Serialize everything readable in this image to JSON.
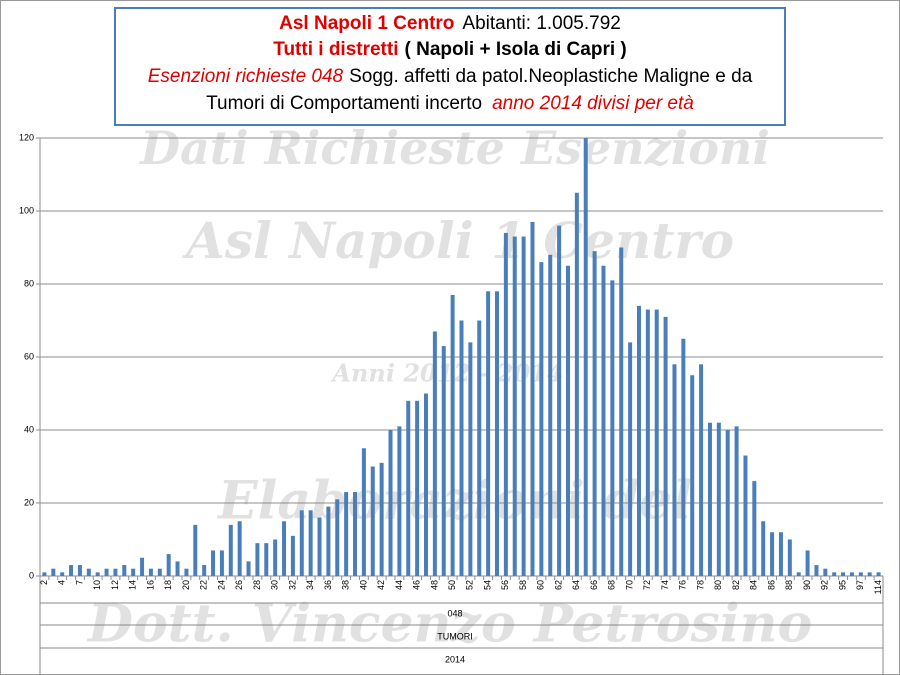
{
  "chart_data": {
    "type": "bar",
    "title_lines": [
      [
        "Asl Napoli 1 Centro",
        "Abitanti: 1.005.792"
      ],
      [
        "Tutti i distretti",
        "( Napoli + Isola di Capri )"
      ],
      [
        "Esenzioni richieste 048",
        "Sogg. affetti da patol.Neoplastiche Maligne e da"
      ],
      [
        "Tumori di Comportamenti incerto",
        "anno 2014 divisi per età"
      ]
    ],
    "watermarks": [
      "Dati Richieste Esenzioni",
      "Asl Napoli 1 Centro",
      "Anni 2012 - 2014",
      "Elaborazioni del",
      "Dott. Vincenzo Petrosino"
    ],
    "category_groups": [
      "048",
      "TUMORI",
      "2014"
    ],
    "categories": [
      "2",
      null,
      "4",
      null,
      "7",
      null,
      "10",
      null,
      "12",
      null,
      "14",
      null,
      "16",
      null,
      "18",
      null,
      "20",
      null,
      "22",
      null,
      "24",
      null,
      "26",
      null,
      "28",
      null,
      "30",
      null,
      "32",
      null,
      "34",
      null,
      "36",
      null,
      "38",
      null,
      "40",
      null,
      "42",
      null,
      "44",
      null,
      "46",
      null,
      "48",
      null,
      "50",
      null,
      "52",
      null,
      "54",
      null,
      "56",
      null,
      "58",
      null,
      "60",
      null,
      "62",
      null,
      "64",
      null,
      "66",
      null,
      "68",
      null,
      "70",
      null,
      "72",
      null,
      "74",
      null,
      "76",
      null,
      "78",
      null,
      "80",
      null,
      "82",
      null,
      "84",
      null,
      "86",
      null,
      "88",
      null,
      "90",
      null,
      "92",
      null,
      "95",
      null,
      "97",
      null,
      "114"
    ],
    "values": [
      1,
      2,
      1,
      3,
      3,
      2,
      1,
      2,
      2,
      3,
      2,
      5,
      2,
      2,
      6,
      4,
      2,
      14,
      3,
      7,
      7,
      14,
      15,
      4,
      9,
      9,
      10,
      15,
      11,
      18,
      18,
      16,
      19,
      21,
      23,
      23,
      35,
      30,
      31,
      40,
      41,
      48,
      48,
      50,
      67,
      63,
      77,
      70,
      64,
      70,
      78,
      78,
      94,
      93,
      93,
      97,
      86,
      88,
      96,
      85,
      105,
      120,
      89,
      85,
      81,
      90,
      64,
      74,
      73,
      73,
      71,
      58,
      65,
      55,
      58,
      42,
      42,
      40,
      41,
      33,
      26,
      15,
      12,
      12,
      10,
      1,
      7,
      3,
      2,
      1,
      1,
      1,
      1,
      1,
      1
    ],
    "color": "#4a7ebb",
    "ylim": [
      0,
      120
    ],
    "yticks": [
      0,
      20,
      40,
      60,
      80,
      100,
      120
    ],
    "grid": true
  }
}
